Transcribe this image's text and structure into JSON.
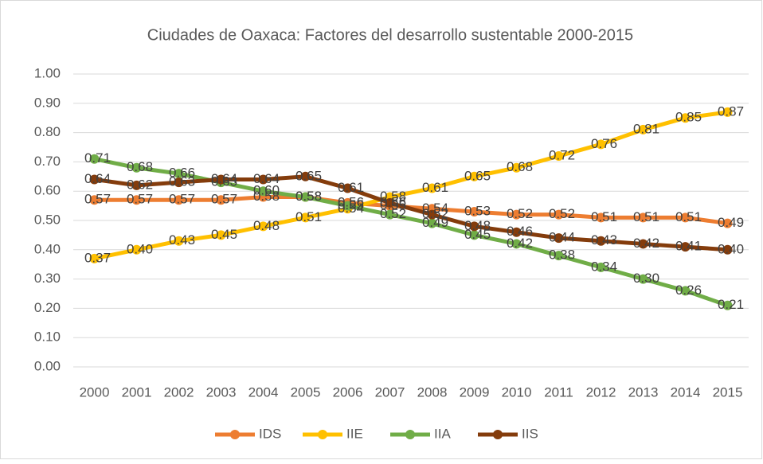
{
  "chart_data": {
    "type": "line",
    "title": "Ciudades de Oaxaca: Factores del desarrollo sustentable 2000-2015",
    "categories": [
      "2000",
      "2001",
      "2002",
      "2003",
      "2004",
      "2005",
      "2006",
      "2007",
      "2008",
      "2009",
      "2010",
      "2011",
      "2012",
      "2013",
      "2014",
      "2015"
    ],
    "ylim": [
      0,
      1
    ],
    "yticks": [
      {
        "value": 0,
        "label": "0.00"
      },
      {
        "value": 0.1,
        "label": "0.10"
      },
      {
        "value": 0.2,
        "label": "0.20"
      },
      {
        "value": 0.3,
        "label": "0.30"
      },
      {
        "value": 0.4,
        "label": "0.40"
      },
      {
        "value": 0.5,
        "label": "0.50"
      },
      {
        "value": 0.6,
        "label": "0.60"
      },
      {
        "value": 0.7,
        "label": "0.70"
      },
      {
        "value": 0.8,
        "label": "0.80"
      },
      {
        "value": 0.9,
        "label": "0.90"
      },
      {
        "value": 1,
        "label": "1.00"
      }
    ],
    "grid": true,
    "legend": "bottom",
    "series": [
      {
        "name": "IDS",
        "color": "#ed7d31",
        "values": [
          0.57,
          0.57,
          0.57,
          0.57,
          0.58,
          0.58,
          0.56,
          0.55,
          0.54,
          0.53,
          0.52,
          0.52,
          0.51,
          0.51,
          0.51,
          0.49
        ],
        "value_labels": [
          "0.57",
          "0.57",
          "0.57",
          "0.57",
          "0.58",
          "0.58",
          "0.56",
          "0.55",
          "0.54",
          "0.53",
          "0.52",
          "0.52",
          "0.51",
          "0.51",
          "0.51",
          "0.49"
        ]
      },
      {
        "name": "IIE",
        "color": "#ffc000",
        "values": [
          0.37,
          0.4,
          0.43,
          0.45,
          0.48,
          0.51,
          0.54,
          0.58,
          0.61,
          0.65,
          0.68,
          0.72,
          0.76,
          0.81,
          0.85,
          0.87
        ],
        "value_labels": [
          "0.37",
          "0.40",
          "0.43",
          "0.45",
          "0.48",
          "0.51",
          "0.54",
          "0.58",
          "0.61",
          "0.65",
          "0.68",
          "0.72",
          "0.76",
          "0.81",
          "0.85",
          "0.87"
        ]
      },
      {
        "name": "IIA",
        "color": "#70ad47",
        "values": [
          0.71,
          0.68,
          0.66,
          0.63,
          0.6,
          0.58,
          0.55,
          0.52,
          0.49,
          0.45,
          0.42,
          0.38,
          0.34,
          0.3,
          0.26,
          0.21
        ],
        "value_labels": [
          "0.71",
          "0.68",
          "0.66",
          "0.63",
          "0.60",
          "0.58",
          "0.55",
          "0.52",
          "0.49",
          "0.45",
          "0.42",
          "0.38",
          "0.34",
          "0.30",
          "0.26",
          "0.21"
        ]
      },
      {
        "name": "IIS",
        "color": "#843c0c",
        "values": [
          0.64,
          0.62,
          0.63,
          0.64,
          0.64,
          0.65,
          0.61,
          0.56,
          0.52,
          0.48,
          0.46,
          0.44,
          0.43,
          0.42,
          0.41,
          0.4
        ],
        "value_labels": [
          "0.64",
          "0.62",
          "0.63",
          "0.64",
          "0.64",
          "0.65",
          "0.61",
          "0.56",
          "0.52",
          "0.48",
          "0.46",
          "0.44",
          "0.43",
          "0.42",
          "0.41",
          "0.40"
        ]
      }
    ]
  }
}
